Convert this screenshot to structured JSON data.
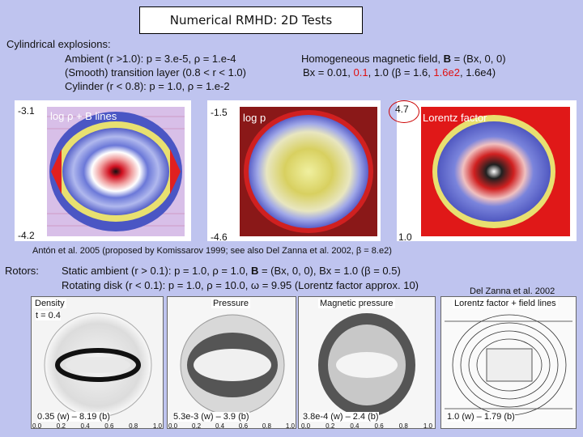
{
  "title": "Numerical RMHD: 2D Tests",
  "cyl": {
    "heading": "Cylindrical explosions:",
    "ambient": "Ambient (r >1.0): p = 3.e-5, ρ = 1.e-4",
    "transition": "(Smooth) transition layer (0.8 < r < 1.0)",
    "cylinder": "Cylinder (r < 0.8): p = 1.0, ρ = 1.e-2",
    "field": "Homogeneous magnetic field, ",
    "field_bold": "B",
    "field_rest": " = (Bx, 0, 0)",
    "bx_prefix": "Bx = 0.01, ",
    "bx_red": "0.1",
    "bx_mid": ", 1.0 (β = 1.6, ",
    "beta_red": "1.6e2",
    "bx_end": ", 1.6e4)"
  },
  "plots": [
    {
      "label": "log ρ + B lines",
      "max": "-3.1",
      "min": "-4.2"
    },
    {
      "label": "log p",
      "max": "-1.5",
      "min": "-4.6"
    },
    {
      "label": "Lorentz factor",
      "max": "4.7",
      "min": "1.0"
    }
  ],
  "reference": "Antón et al. 2005 (proposed by Komissarov 1999; see also Del Zanna et al. 2002, β = 8.e2)",
  "rotors": {
    "heading": "Rotors:",
    "static": "Static ambient (r > 0.1): p = 1.0, ρ = 1.0, ",
    "static_bold": "B",
    "static_rest": " = (Bx, 0, 0), Bx = 1.0 (β = 0.5)",
    "disk": "Rotating disk (r < 0.1): p = 1.0, ρ = 10.0, ω = 9.95 (Lorentz factor approx. 10)",
    "credit": "Del Zanna et al. 2002",
    "time": "t = 0.4"
  },
  "bottom_panels": [
    {
      "title": "Density",
      "range": "0.35 (w) – 8.19 (b)"
    },
    {
      "title": "Pressure",
      "range": "5.3e-3 (w) – 3.9 (b)"
    },
    {
      "title": "Magnetic pressure",
      "range": "3.8e-4 (w) – 2.4 (b)"
    },
    {
      "title": "Lorentz factor + field lines",
      "range": "1.0 (w) – 1.79 (b)"
    }
  ],
  "axis_ticks": [
    "0.0",
    "0.2",
    "0.4",
    "0.6",
    "0.8",
    "1.0"
  ],
  "colors": {
    "background": "#bfc4ef",
    "accent_red": "#e01010"
  }
}
